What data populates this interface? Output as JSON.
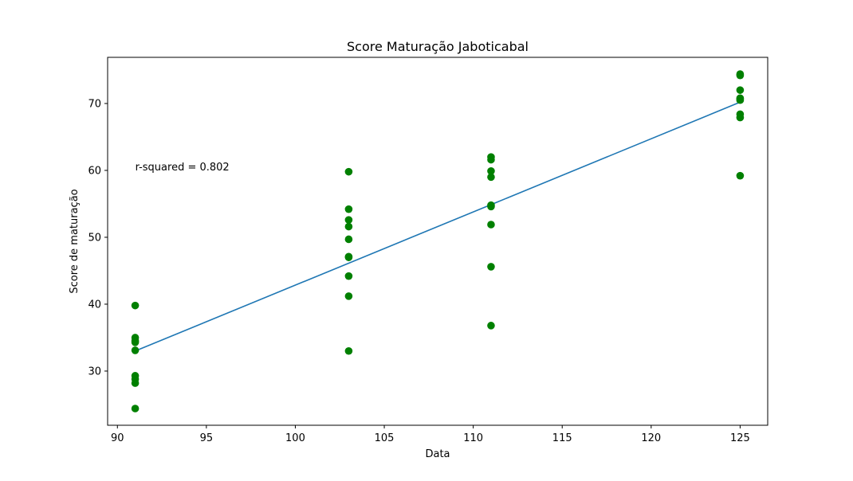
{
  "chart_data": {
    "type": "scatter",
    "title": "Score Maturação Jaboticabal",
    "xlabel": "Data",
    "ylabel": "Score de maturação",
    "xlim": [
      89.45,
      126.55
    ],
    "ylim": [
      21.9,
      76.9
    ],
    "xticks": [
      90,
      95,
      100,
      105,
      110,
      115,
      120,
      125
    ],
    "yticks": [
      30,
      40,
      50,
      60,
      70
    ],
    "grid": false,
    "annotation": {
      "text": "r-squared = 0.802",
      "x": 91,
      "y": 60
    },
    "points": {
      "color": "#008000",
      "x": [
        91,
        91,
        91,
        91,
        91,
        91,
        91,
        91,
        91,
        103,
        103,
        103,
        103,
        103,
        103,
        103,
        103,
        103,
        103,
        111,
        111,
        111,
        111,
        111,
        111,
        111,
        111,
        111,
        125,
        125,
        125,
        125,
        125,
        125,
        125,
        125,
        125
      ],
      "y": [
        39.8,
        35.0,
        34.5,
        33.1,
        29.3,
        28.8,
        28.2,
        24.4,
        34.3,
        59.8,
        54.2,
        52.6,
        51.6,
        49.7,
        47.1,
        44.2,
        41.2,
        33.0,
        47.0,
        62.0,
        61.6,
        59.9,
        59.0,
        54.8,
        51.9,
        45.6,
        36.8,
        54.6,
        74.4,
        74.2,
        72.0,
        70.8,
        70.5,
        68.4,
        67.9,
        59.2,
        70.7
      ]
    },
    "fit_line": {
      "color": "#1f77b4",
      "x": [
        91,
        125
      ],
      "y": [
        33.0,
        70.2
      ]
    }
  }
}
